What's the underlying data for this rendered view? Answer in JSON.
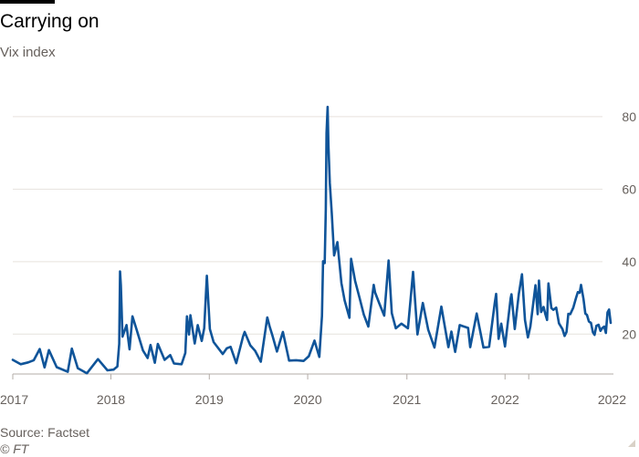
{
  "header": {
    "title": "Carrying on",
    "subtitle": "Vix index"
  },
  "footer": {
    "source": "Source: Factset",
    "copyright": "© FT"
  },
  "colors": {
    "line": "#0f5499",
    "grid": "#e6e2de",
    "baseline": "#b3aca7",
    "text": "#66605c"
  },
  "chart_data": {
    "type": "line",
    "ylim": [
      9,
      83
    ],
    "yticks": [
      20,
      40,
      60,
      80
    ],
    "ytick_position": "right",
    "grid": true,
    "x_ticks": [
      {
        "date": "2017-01-03",
        "label": "2017"
      },
      {
        "date": "2018-01-02",
        "label": "2018"
      },
      {
        "date": "2019-01-02",
        "label": "2019"
      },
      {
        "date": "2020-01-02",
        "label": "2020"
      },
      {
        "date": "2021-01-04",
        "label": "2021"
      },
      {
        "date": "2022-01-03",
        "label": "2022"
      },
      {
        "date": "2022-04-01",
        "label": "2022"
      }
    ],
    "series": [
      {
        "name": "Vix",
        "points": [
          [
            "2017-01-03",
            12.9
          ],
          [
            "2017-02-01",
            11.7
          ],
          [
            "2017-03-01",
            12.2
          ],
          [
            "2017-03-22",
            12.8
          ],
          [
            "2017-04-13",
            15.9
          ],
          [
            "2017-05-01",
            10.8
          ],
          [
            "2017-05-17",
            15.6
          ],
          [
            "2017-06-15",
            10.9
          ],
          [
            "2017-07-26",
            9.6
          ],
          [
            "2017-08-10",
            16.0
          ],
          [
            "2017-09-01",
            10.6
          ],
          [
            "2017-10-05",
            9.2
          ],
          [
            "2017-11-15",
            13.1
          ],
          [
            "2017-12-20",
            10.0
          ],
          [
            "2018-01-12",
            10.2
          ],
          [
            "2018-01-26",
            11.1
          ],
          [
            "2018-02-02",
            17.3
          ],
          [
            "2018-02-05",
            37.3
          ],
          [
            "2018-02-08",
            33.5
          ],
          [
            "2018-02-14",
            19.3
          ],
          [
            "2018-03-01",
            22.5
          ],
          [
            "2018-03-12",
            15.8
          ],
          [
            "2018-03-23",
            24.9
          ],
          [
            "2018-04-06",
            21.5
          ],
          [
            "2018-05-01",
            15.5
          ],
          [
            "2018-05-18",
            13.4
          ],
          [
            "2018-05-29",
            17.0
          ],
          [
            "2018-06-14",
            12.1
          ],
          [
            "2018-06-25",
            17.3
          ],
          [
            "2018-07-20",
            12.9
          ],
          [
            "2018-08-10",
            14.2
          ],
          [
            "2018-08-24",
            11.9
          ],
          [
            "2018-09-21",
            11.7
          ],
          [
            "2018-10-05",
            14.8
          ],
          [
            "2018-10-11",
            24.9
          ],
          [
            "2018-10-19",
            19.9
          ],
          [
            "2018-10-24",
            25.2
          ],
          [
            "2018-11-09",
            17.4
          ],
          [
            "2018-11-20",
            22.5
          ],
          [
            "2018-12-05",
            18.1
          ],
          [
            "2018-12-14",
            21.6
          ],
          [
            "2018-12-24",
            36.1
          ],
          [
            "2019-01-04",
            21.4
          ],
          [
            "2019-01-18",
            17.8
          ],
          [
            "2019-02-21",
            14.5
          ],
          [
            "2019-03-08",
            16.1
          ],
          [
            "2019-03-22",
            16.5
          ],
          [
            "2019-04-12",
            12.0
          ],
          [
            "2019-05-07",
            19.3
          ],
          [
            "2019-05-13",
            20.6
          ],
          [
            "2019-06-03",
            16.9
          ],
          [
            "2019-06-21",
            15.4
          ],
          [
            "2019-07-12",
            12.4
          ],
          [
            "2019-08-05",
            24.6
          ],
          [
            "2019-08-14",
            22.1
          ],
          [
            "2019-08-23",
            19.9
          ],
          [
            "2019-09-10",
            15.2
          ],
          [
            "2019-10-02",
            20.6
          ],
          [
            "2019-10-25",
            12.7
          ],
          [
            "2019-11-20",
            12.8
          ],
          [
            "2019-12-18",
            12.6
          ],
          [
            "2020-01-06",
            13.9
          ],
          [
            "2020-01-27",
            18.2
          ],
          [
            "2020-02-14",
            13.7
          ],
          [
            "2020-02-24",
            25.0
          ],
          [
            "2020-02-28",
            40.1
          ],
          [
            "2020-03-05",
            39.6
          ],
          [
            "2020-03-09",
            54.5
          ],
          [
            "2020-03-12",
            75.5
          ],
          [
            "2020-03-16",
            82.7
          ],
          [
            "2020-03-19",
            72.0
          ],
          [
            "2020-03-24",
            61.7
          ],
          [
            "2020-03-31",
            53.5
          ],
          [
            "2020-04-09",
            41.7
          ],
          [
            "2020-04-21",
            45.4
          ],
          [
            "2020-05-06",
            34.1
          ],
          [
            "2020-05-18",
            29.3
          ],
          [
            "2020-06-05",
            24.5
          ],
          [
            "2020-06-11",
            40.8
          ],
          [
            "2020-06-26",
            34.7
          ],
          [
            "2020-07-14",
            29.5
          ],
          [
            "2020-07-28",
            25.4
          ],
          [
            "2020-08-14",
            22.1
          ],
          [
            "2020-09-03",
            33.6
          ],
          [
            "2020-09-08",
            31.5
          ],
          [
            "2020-09-23",
            28.6
          ],
          [
            "2020-10-12",
            25.1
          ],
          [
            "2020-10-28",
            40.3
          ],
          [
            "2020-11-09",
            25.8
          ],
          [
            "2020-11-24",
            21.6
          ],
          [
            "2020-12-15",
            22.9
          ],
          [
            "2021-01-08",
            21.6
          ],
          [
            "2021-01-27",
            37.2
          ],
          [
            "2021-02-12",
            19.9
          ],
          [
            "2021-03-04",
            28.6
          ],
          [
            "2021-03-24",
            21.2
          ],
          [
            "2021-04-16",
            16.3
          ],
          [
            "2021-05-12",
            27.6
          ],
          [
            "2021-06-07",
            16.4
          ],
          [
            "2021-06-18",
            20.7
          ],
          [
            "2021-07-02",
            15.1
          ],
          [
            "2021-07-19",
            22.5
          ],
          [
            "2021-08-19",
            21.7
          ],
          [
            "2021-08-27",
            16.4
          ],
          [
            "2021-09-20",
            25.7
          ],
          [
            "2021-10-15",
            16.3
          ],
          [
            "2021-11-05",
            16.5
          ],
          [
            "2021-11-26",
            28.6
          ],
          [
            "2021-12-01",
            31.1
          ],
          [
            "2021-12-10",
            18.7
          ],
          [
            "2021-12-20",
            22.9
          ],
          [
            "2022-01-03",
            16.6
          ],
          [
            "2022-01-24",
            29.9
          ],
          [
            "2022-01-27",
            31.0
          ],
          [
            "2022-02-08",
            21.4
          ],
          [
            "2022-02-23",
            31.0
          ],
          [
            "2022-03-07",
            36.5
          ],
          [
            "2022-03-18",
            23.9
          ],
          [
            "2022-03-29",
            19.1
          ],
          [
            "2022-04-07",
            22.1
          ],
          [
            "2022-04-26",
            33.5
          ],
          [
            "2022-05-04",
            25.5
          ],
          [
            "2022-05-09",
            34.8
          ],
          [
            "2022-05-17",
            26.1
          ],
          [
            "2022-05-26",
            27.5
          ],
          [
            "2022-06-01",
            25.7
          ],
          [
            "2022-06-08",
            23.9
          ],
          [
            "2022-06-13",
            34.0
          ],
          [
            "2022-06-24",
            27.2
          ],
          [
            "2022-07-01",
            26.7
          ],
          [
            "2022-07-12",
            27.3
          ],
          [
            "2022-07-22",
            23.0
          ],
          [
            "2022-08-04",
            21.4
          ],
          [
            "2022-08-12",
            19.5
          ],
          [
            "2022-08-19",
            20.6
          ],
          [
            "2022-08-26",
            25.6
          ],
          [
            "2022-09-02",
            25.5
          ],
          [
            "2022-09-13",
            27.3
          ],
          [
            "2022-09-23",
            29.9
          ],
          [
            "2022-09-30",
            31.6
          ],
          [
            "2022-10-07",
            31.4
          ],
          [
            "2022-10-12",
            33.6
          ],
          [
            "2022-10-21",
            29.7
          ],
          [
            "2022-10-28",
            25.7
          ],
          [
            "2022-11-03",
            25.3
          ],
          [
            "2022-11-10",
            23.5
          ],
          [
            "2022-11-18",
            23.1
          ],
          [
            "2022-11-25",
            20.5
          ],
          [
            "2022-12-01",
            19.8
          ],
          [
            "2022-12-08",
            22.3
          ],
          [
            "2022-12-16",
            22.6
          ],
          [
            "2022-12-23",
            20.9
          ],
          [
            "2022-12-30",
            21.7
          ],
          [
            "2023-01-06",
            22.1
          ],
          [
            "2023-01-12",
            20.3
          ],
          [
            "2023-01-18",
            26.0
          ],
          [
            "2023-01-24",
            26.8
          ],
          [
            "2023-01-30",
            23.1
          ]
        ]
      }
    ]
  }
}
